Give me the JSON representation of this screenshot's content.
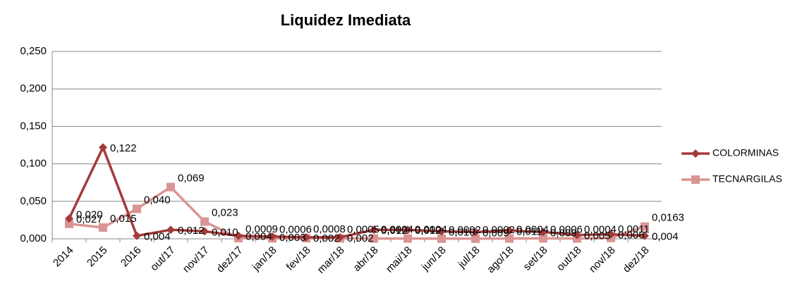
{
  "chart_data": {
    "type": "line",
    "title": "Liquidez Imediata",
    "categories": [
      "2014",
      "2015",
      "2016",
      "out/17",
      "nov/17",
      "dez/17",
      "jan/18",
      "fev/18",
      "mar/18",
      "abr/18",
      "mai/18",
      "jun/18",
      "jul/18",
      "ago/18",
      "set/18",
      "out/18",
      "nov/18",
      "dez/18"
    ],
    "series": [
      {
        "name": "COLORMINAS",
        "color": "#a33b3b",
        "marker": "diamond",
        "values": [
          0.027,
          0.122,
          0.004,
          0.012,
          0.01,
          0.004,
          0.003,
          0.002,
          0.002,
          0.012,
          0.012,
          0.01,
          0.009,
          0.011,
          0.009,
          0.005,
          0.006,
          0.004
        ],
        "value_labels": [
          "0,027",
          "0,122",
          "0,004",
          "0,012",
          "0,010",
          "0,004",
          "0,003",
          "0,002",
          "0,002",
          "0,012",
          "0,012",
          "0,010",
          "0,009",
          "0,011",
          "0,009",
          "0,005",
          "0,006",
          "0,004"
        ]
      },
      {
        "name": "TECNARGILAS",
        "color": "#d99594",
        "marker": "square",
        "values": [
          0.02,
          0.015,
          0.04,
          0.069,
          0.023,
          0.0009,
          0.0006,
          0.0008,
          0.0005,
          0.0004,
          0.0004,
          0.0002,
          0.0002,
          0.0004,
          0.0006,
          0.0004,
          0.0011,
          0.0163
        ],
        "value_labels": [
          "0,020",
          "0,015",
          "0,040",
          "0,069",
          "0,023",
          "0,0009",
          "0,0006",
          "0,0008",
          "0,0005",
          "0,0004",
          "0,0004",
          "0,0002",
          "0,0002",
          "0,0004",
          "0,0006",
          "0,0004",
          "0,0011",
          "0,0163"
        ]
      }
    ],
    "ylim": [
      0,
      0.25
    ],
    "yticks": [
      {
        "value": 0,
        "label": "0,000"
      },
      {
        "value": 0.05,
        "label": "0,050"
      },
      {
        "value": 0.1,
        "label": "0,100"
      },
      {
        "value": 0.15,
        "label": "0,150"
      },
      {
        "value": 0.2,
        "label": "0,200"
      },
      {
        "value": 0.25,
        "label": "0,250"
      }
    ],
    "grid": true,
    "legend": "right"
  }
}
